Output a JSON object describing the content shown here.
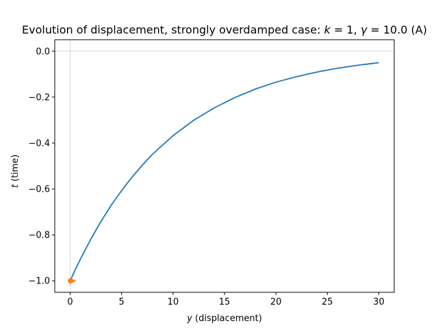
{
  "chart_data": {
    "type": "line",
    "title": "Evolution of displacement, strongly overdamped case: k = 1, γ = 10.0 (A)",
    "title_parts": {
      "prefix": "Evolution of displacement, strongly overdamped case: ",
      "k_sym": "k",
      "eq1": " = 1, ",
      "gamma_sym": "γ",
      "eq2": " = 10.0 (A)"
    },
    "xlabel": "y (displacement)",
    "xlabel_parts": {
      "sym": "y",
      "rest": " (displacement)"
    },
    "ylabel": "t (time)",
    "ylabel_parts": {
      "sym": "t",
      "rest": " (time)"
    },
    "xlim": [
      -1.5,
      31.5
    ],
    "ylim": [
      -1.05,
      0.05
    ],
    "x_ticks": [
      0,
      5,
      10,
      15,
      20,
      25,
      30
    ],
    "x_tick_labels": [
      "0",
      "5",
      "10",
      "15",
      "20",
      "25",
      "30"
    ],
    "y_ticks": [
      0.0,
      -0.2,
      -0.4,
      -0.6,
      -0.8,
      -1.0
    ],
    "y_tick_labels": [
      "0.0",
      "−0.2",
      "−0.4",
      "−0.6",
      "−0.8",
      "−1.0"
    ],
    "reference_lines": {
      "x": 0,
      "y": 0,
      "style": "dotted",
      "color": "#808080"
    },
    "grid": false,
    "legend": "none",
    "series": [
      {
        "color": "#1f77b4",
        "x": [
          0.0,
          0.5,
          1.0,
          2.0,
          3.0,
          4.0,
          5.0,
          6.0,
          7.0,
          8.0,
          10.0,
          12.0,
          14.0,
          16.0,
          18.0,
          20.0,
          22.0,
          24.0,
          26.0,
          28.0,
          30.0
        ],
        "y": [
          -1.0,
          -0.951,
          -0.905,
          -0.819,
          -0.741,
          -0.67,
          -0.607,
          -0.549,
          -0.497,
          -0.449,
          -0.368,
          -0.301,
          -0.247,
          -0.202,
          -0.165,
          -0.135,
          -0.111,
          -0.091,
          -0.074,
          -0.061,
          -0.05
        ]
      }
    ],
    "markers": [
      {
        "x": 0.0,
        "y": -1.0,
        "shape": "circle",
        "color": "#ff7f0e"
      },
      {
        "x": 0.15,
        "y": -1.0,
        "shape": "triangle-right",
        "color": "#ff7f0e"
      }
    ]
  }
}
